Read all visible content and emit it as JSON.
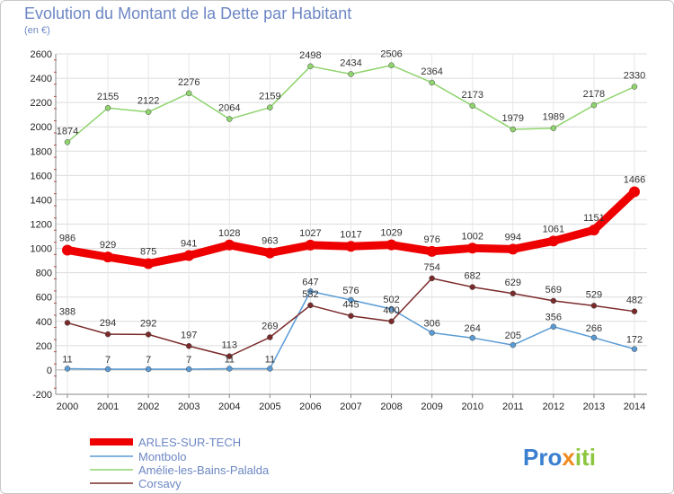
{
  "chart_data": {
    "type": "line",
    "title": "Evolution du Montant de la Dette par Habitant",
    "subtitle": "(en €)",
    "categories": [
      "2000",
      "2001",
      "2002",
      "2003",
      "2004",
      "2005",
      "2006",
      "2007",
      "2008",
      "2009",
      "2010",
      "2011",
      "2012",
      "2013",
      "2014"
    ],
    "ylim": [
      -200,
      2600
    ],
    "yticks": [
      -200,
      0,
      200,
      400,
      600,
      800,
      1000,
      1200,
      1400,
      1600,
      1800,
      2000,
      2200,
      2400,
      2600
    ],
    "grid": true,
    "legend": "bottom-left",
    "series": [
      {
        "name": "ARLES-SUR-TECH",
        "color": "#ee0000",
        "values": [
          986,
          929,
          875,
          941,
          1028,
          963,
          1027,
          1017,
          1029,
          976,
          1002,
          994,
          1061,
          1151,
          1466
        ]
      },
      {
        "name": "Montbolo",
        "color": "#5a9bd5",
        "values": [
          11,
          7,
          7,
          7,
          11,
          11,
          647,
          576,
          502,
          306,
          264,
          205,
          356,
          266,
          172
        ]
      },
      {
        "name": "Amélie-les-Bains-Palalda",
        "color": "#8fd46e",
        "values": [
          1874,
          2155,
          2122,
          2276,
          2064,
          2159,
          2498,
          2434,
          2506,
          2364,
          2173,
          1979,
          1989,
          2178,
          2330
        ]
      },
      {
        "name": "Corsavy",
        "color": "#7a2a2a",
        "values": [
          388,
          294,
          292,
          197,
          113,
          269,
          532,
          445,
          400,
          754,
          682,
          629,
          569,
          529,
          482
        ]
      }
    ]
  },
  "logo": {
    "text_parts": [
      "Pro",
      "x",
      "iti"
    ]
  }
}
